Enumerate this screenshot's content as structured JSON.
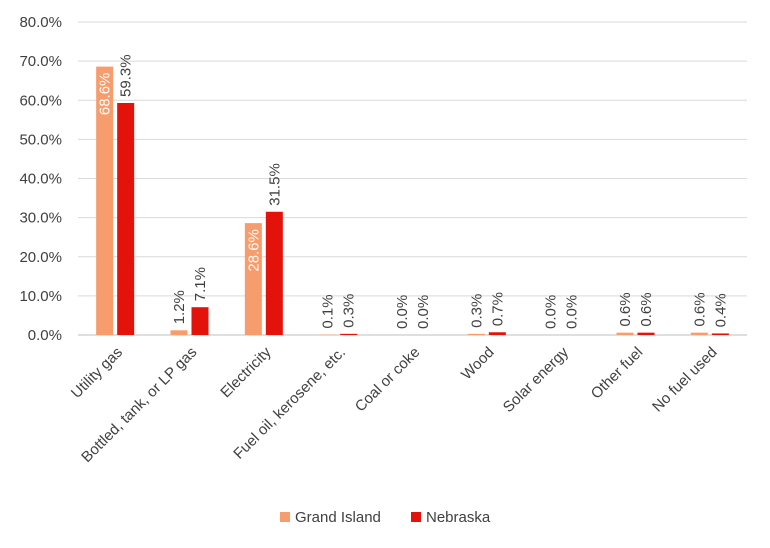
{
  "chart_data": {
    "type": "bar",
    "title": "",
    "xlabel": "",
    "ylabel": "",
    "ylim": [
      0,
      80
    ],
    "yticks": [
      "0.0%",
      "10.0%",
      "20.0%",
      "30.0%",
      "40.0%",
      "50.0%",
      "60.0%",
      "70.0%",
      "80.0%"
    ],
    "grid": true,
    "legend_position": "bottom",
    "categories": [
      "Utility gas",
      "Bottled, tank, or LP gas",
      "Electricity",
      "Fuel oil, kerosene, etc.",
      "Coal or coke",
      "Wood",
      "Solar energy",
      "Other fuel",
      "No fuel used"
    ],
    "series": [
      {
        "name": "Grand Island",
        "color": "#f79c6c",
        "values": [
          68.6,
          1.2,
          28.6,
          0.1,
          0.0,
          0.3,
          0.0,
          0.6,
          0.6
        ],
        "labels": [
          "68.6%",
          "1.2%",
          "28.6%",
          "0.1%",
          "0.0%",
          "0.3%",
          "0.0%",
          "0.6%",
          "0.6%"
        ]
      },
      {
        "name": "Nebraska",
        "color": "#e3120b",
        "values": [
          59.3,
          7.1,
          31.5,
          0.3,
          0.0,
          0.7,
          0.0,
          0.6,
          0.4
        ],
        "labels": [
          "59.3%",
          "7.1%",
          "31.5%",
          "0.3%",
          "0.0%",
          "0.7%",
          "0.0%",
          "0.6%",
          "0.4%"
        ]
      }
    ]
  }
}
